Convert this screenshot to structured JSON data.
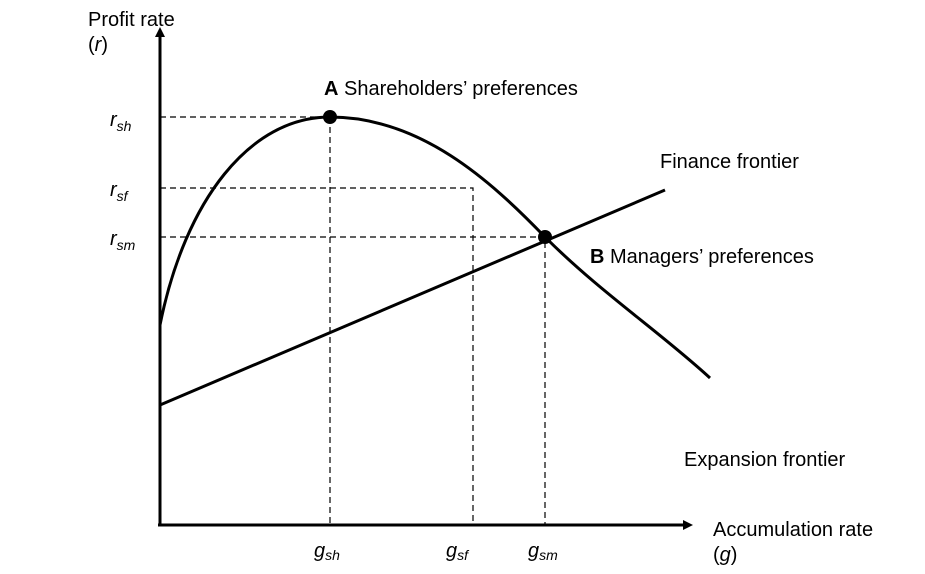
{
  "y_axis": {
    "label": "Profit rate",
    "symbol_parts": [
      "(",
      "r",
      ")"
    ]
  },
  "x_axis": {
    "label": "Accumulation rate",
    "symbol_parts": [
      "(",
      "g",
      ")"
    ]
  },
  "r_levels": [
    {
      "symbol": "r",
      "subscript": "sh"
    },
    {
      "symbol": "r",
      "subscript": "sf"
    },
    {
      "symbol": "r",
      "subscript": "sm"
    }
  ],
  "g_levels": [
    {
      "symbol": "g",
      "subscript": "sh"
    },
    {
      "symbol": "g",
      "subscript": "sf"
    },
    {
      "symbol": "g",
      "subscript": "sm"
    }
  ],
  "points": [
    {
      "letter": "A",
      "label": "Shareholders’ preferences"
    },
    {
      "letter": "B",
      "label": "Managers’ preferences"
    }
  ],
  "curves": {
    "finance": "Finance frontier",
    "expansion": "Expansion frontier"
  }
}
